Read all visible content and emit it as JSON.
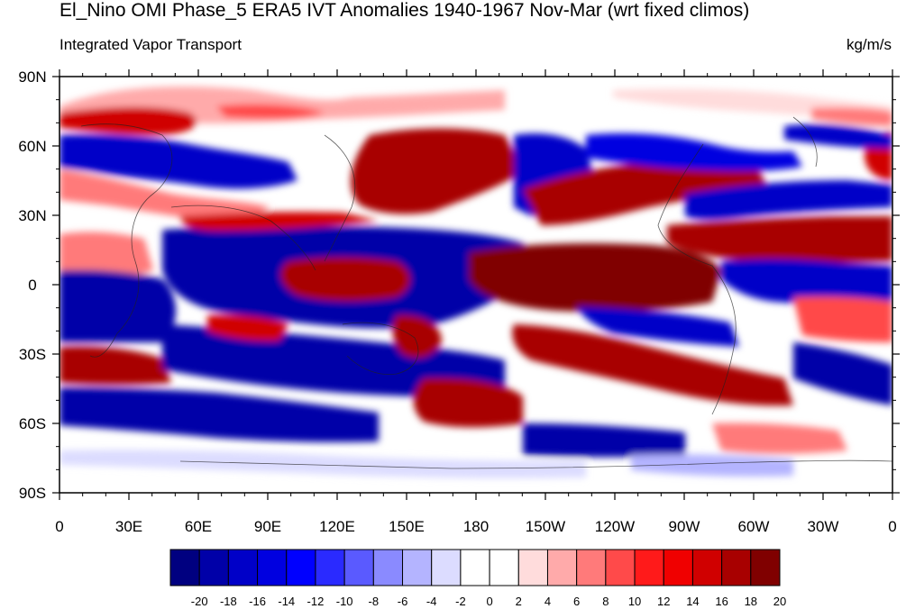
{
  "title": "El_Nino OMI Phase_5 ERA5 IVT Anomalies 1940-1967 Nov-Mar (wrt fixed climos)",
  "left_subtitle": "Integrated Vapor Transport",
  "right_subtitle": "kg/m/s",
  "map": {
    "lon_labels": [
      "0",
      "30E",
      "60E",
      "90E",
      "120E",
      "150E",
      "180",
      "150W",
      "120W",
      "90W",
      "60W",
      "30W",
      "0"
    ],
    "lat_labels": [
      "90N",
      "60N",
      "30N",
      "0",
      "30S",
      "60S",
      "90S"
    ],
    "lon_range": [
      0,
      360
    ],
    "lat_range": [
      -90,
      90
    ]
  },
  "colorbar": {
    "labels": [
      "-20",
      "-18",
      "-16",
      "-14",
      "-12",
      "-10",
      "-8",
      "-6",
      "-4",
      "-2",
      "0",
      "2",
      "4",
      "6",
      "8",
      "10",
      "12",
      "14",
      "16",
      "18",
      "20"
    ],
    "colors": [
      "#000080",
      "#0000a8",
      "#0000c8",
      "#0000e0",
      "#0000ff",
      "#2a2aff",
      "#5a5aff",
      "#8a8aff",
      "#b4b4ff",
      "#dcdcff",
      "#ffffff",
      "#ffffff",
      "#ffdcdc",
      "#ffaaaa",
      "#ff7a7a",
      "#ff4a4a",
      "#ff1a1a",
      "#f00000",
      "#d00000",
      "#a80000",
      "#800000"
    ]
  }
}
